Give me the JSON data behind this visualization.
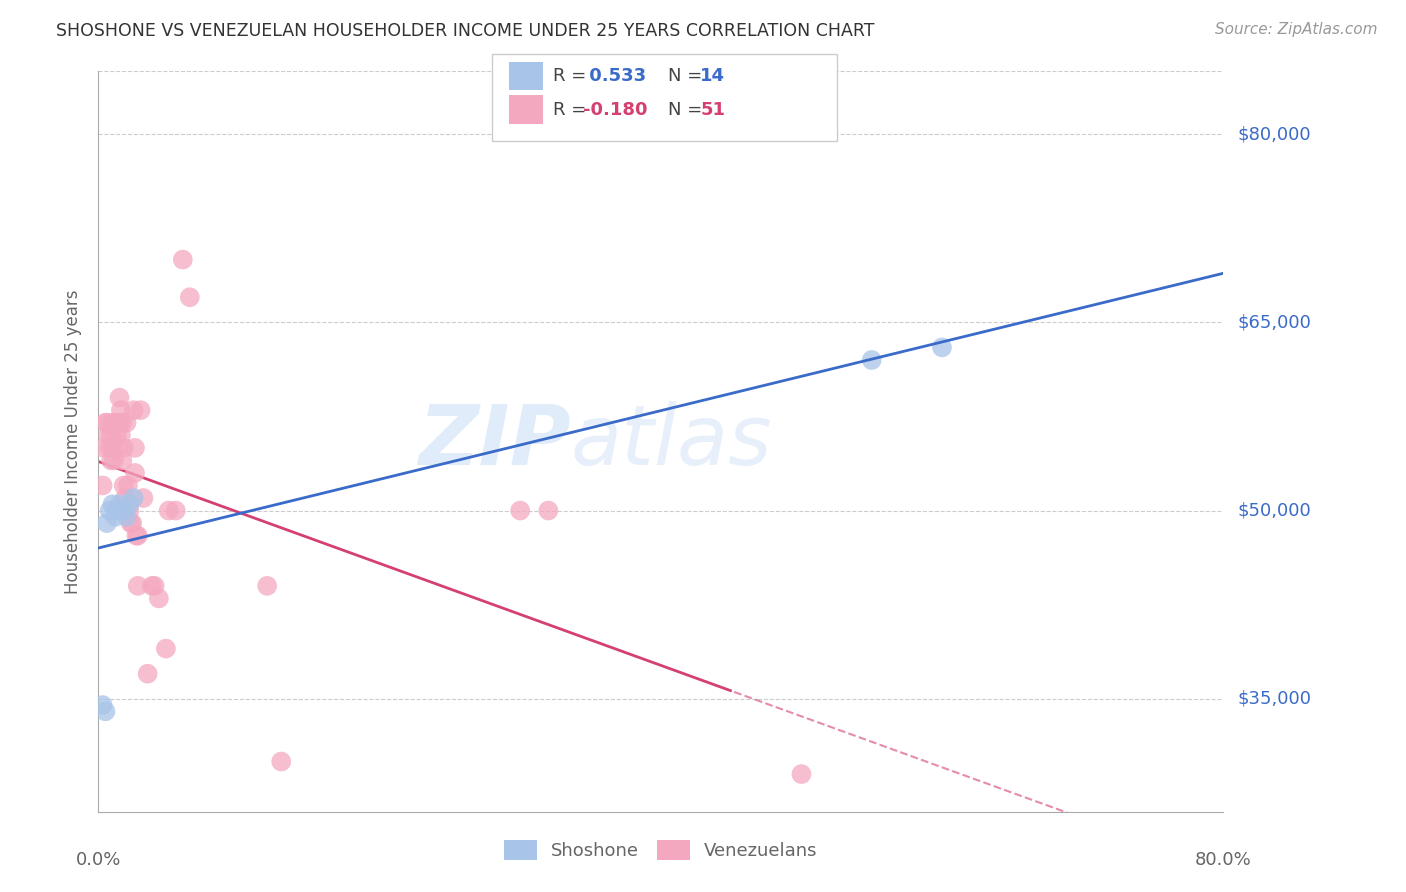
{
  "title": "SHOSHONE VS VENEZUELAN HOUSEHOLDER INCOME UNDER 25 YEARS CORRELATION CHART",
  "source": "Source: ZipAtlas.com",
  "ylabel": "Householder Income Under 25 years",
  "xlim": [
    0.0,
    0.8
  ],
  "ylim": [
    26000,
    85000
  ],
  "yticks": [
    35000,
    50000,
    65000,
    80000
  ],
  "ytick_labels": [
    "$35,000",
    "$50,000",
    "$65,000",
    "$80,000"
  ],
  "background_color": "#ffffff",
  "watermark_text": "ZIP",
  "watermark_text2": "atlas",
  "shoshone_color": "#a8c4e8",
  "venezuelan_color": "#f4a8c0",
  "shoshone_line_color": "#3a6bc9",
  "venezuelan_line_color": "#d44070",
  "legend_r_shoshone": " 0.533",
  "legend_n_shoshone": "14",
  "legend_r_venezuelan": "-0.180",
  "legend_n_venezuelan": "51",
  "shoshone_x": [
    0.003,
    0.005,
    0.006,
    0.008,
    0.01,
    0.012,
    0.013,
    0.015,
    0.018,
    0.02,
    0.022,
    0.025,
    0.55,
    0.6
  ],
  "shoshone_y": [
    34500,
    34000,
    49000,
    50000,
    50500,
    49500,
    50000,
    50500,
    50000,
    49500,
    50500,
    51000,
    62000,
    63000
  ],
  "venezuelan_x": [
    0.003,
    0.004,
    0.005,
    0.006,
    0.007,
    0.008,
    0.009,
    0.009,
    0.01,
    0.01,
    0.011,
    0.012,
    0.013,
    0.014,
    0.014,
    0.015,
    0.015,
    0.016,
    0.016,
    0.017,
    0.017,
    0.018,
    0.018,
    0.019,
    0.02,
    0.021,
    0.022,
    0.023,
    0.024,
    0.025,
    0.026,
    0.026,
    0.027,
    0.028,
    0.028,
    0.03,
    0.032,
    0.035,
    0.038,
    0.04,
    0.043,
    0.048,
    0.05,
    0.055,
    0.06,
    0.065,
    0.12,
    0.13,
    0.3,
    0.32,
    0.5
  ],
  "venezuelan_y": [
    52000,
    55000,
    57000,
    57000,
    56000,
    55000,
    56000,
    54000,
    57000,
    55000,
    54000,
    57000,
    56000,
    55000,
    57000,
    59000,
    57000,
    58000,
    56000,
    57000,
    54000,
    55000,
    52000,
    51000,
    57000,
    52000,
    50000,
    49000,
    49000,
    58000,
    55000,
    53000,
    48000,
    48000,
    44000,
    58000,
    51000,
    37000,
    44000,
    44000,
    43000,
    39000,
    50000,
    50000,
    70000,
    67000,
    44000,
    30000,
    50000,
    50000,
    29000
  ],
  "ven_line_cutoff": 0.45,
  "sho_line_start": 0.0,
  "sho_line_end": 0.8,
  "ven_line_start": 0.0,
  "ven_line_end": 0.8
}
